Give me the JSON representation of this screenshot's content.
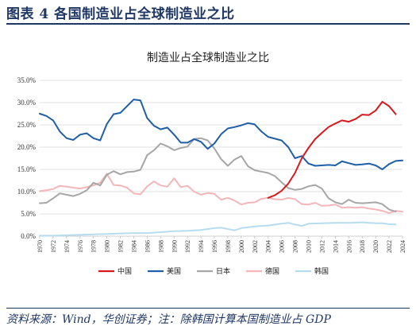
{
  "header": {
    "title": "图表 4   各国制造业占全球制造业之比"
  },
  "footer": {
    "source": "资料来源：Wind，华创证券；注：除韩国计算本国制造业占 GDP"
  },
  "chart_data": {
    "type": "line",
    "title": "制造业占全球制造业之比",
    "xlabel": "",
    "ylabel": "",
    "ylim": [
      0,
      35
    ],
    "yticks": [
      "0.0%",
      "5.0%",
      "10.0%",
      "15.0%",
      "20.0%",
      "25.0%",
      "30.0%",
      "35.0%"
    ],
    "x_start": 1970,
    "x_end": 2024,
    "xticks": [
      "1970",
      "1972",
      "1974",
      "1976",
      "1978",
      "1980",
      "1982",
      "1984",
      "1986",
      "1988",
      "1990",
      "1992",
      "1994",
      "1996",
      "1998",
      "2000",
      "2002",
      "2004",
      "2006",
      "2008",
      "2010",
      "2012",
      "2014",
      "2016",
      "2018",
      "2020",
      "2022",
      "2024"
    ],
    "grid": true,
    "legend_position": "bottom",
    "series": [
      {
        "name": "中国",
        "color": "#d7191c",
        "x": [
          2004,
          2005,
          2006,
          2007,
          2008,
          2009,
          2010,
          2011,
          2012,
          2013,
          2014,
          2015,
          2016,
          2017,
          2018,
          2019,
          2020,
          2021,
          2022,
          2023
        ],
        "values": [
          8.6,
          9.2,
          10.2,
          11.8,
          14.2,
          17.5,
          19.8,
          21.8,
          23.2,
          24.5,
          25.3,
          26.0,
          25.7,
          26.3,
          27.3,
          27.2,
          28.2,
          30.2,
          29.2,
          27.4
        ]
      },
      {
        "name": "美国",
        "color": "#1f5fa8",
        "x": [
          1970,
          1971,
          1972,
          1973,
          1974,
          1975,
          1976,
          1977,
          1978,
          1979,
          1980,
          1981,
          1982,
          1983,
          1984,
          1985,
          1986,
          1987,
          1988,
          1989,
          1990,
          1991,
          1992,
          1993,
          1994,
          1995,
          1996,
          1997,
          1998,
          1999,
          2000,
          2001,
          2002,
          2003,
          2004,
          2005,
          2006,
          2007,
          2008,
          2009,
          2010,
          2011,
          2012,
          2013,
          2014,
          2015,
          2016,
          2017,
          2018,
          2019,
          2020,
          2021,
          2022,
          2023,
          2024
        ],
        "values": [
          27.5,
          27.0,
          26.0,
          23.5,
          22.0,
          21.6,
          22.8,
          23.1,
          22.0,
          21.5,
          25.2,
          27.4,
          27.7,
          29.2,
          30.7,
          30.5,
          26.5,
          24.8,
          24.0,
          24.4,
          22.8,
          21.0,
          21.0,
          21.8,
          21.2,
          19.6,
          20.8,
          22.9,
          24.2,
          24.5,
          24.9,
          25.4,
          25.1,
          23.5,
          22.3,
          21.9,
          21.5,
          20.0,
          17.5,
          18.0,
          16.3,
          15.8,
          15.9,
          16.0,
          15.9,
          16.8,
          16.4,
          16.0,
          16.1,
          16.3,
          15.9,
          15.0,
          16.2,
          16.9,
          17.0
        ]
      },
      {
        "name": "日本",
        "color": "#a6a6a6",
        "x": [
          1970,
          1971,
          1972,
          1973,
          1974,
          1975,
          1976,
          1977,
          1978,
          1979,
          1980,
          1981,
          1982,
          1983,
          1984,
          1985,
          1986,
          1987,
          1988,
          1989,
          1990,
          1991,
          1992,
          1993,
          1994,
          1995,
          1996,
          1997,
          1998,
          1999,
          2000,
          2001,
          2002,
          2003,
          2004,
          2005,
          2006,
          2007,
          2008,
          2009,
          2010,
          2011,
          2012,
          2013,
          2014,
          2015,
          2016,
          2017,
          2018,
          2019,
          2020,
          2021,
          2022,
          2023
        ],
        "values": [
          7.4,
          7.5,
          8.5,
          9.6,
          9.3,
          9.0,
          9.5,
          10.3,
          12.0,
          11.4,
          13.8,
          14.6,
          13.9,
          14.4,
          14.5,
          14.9,
          18.2,
          19.3,
          20.8,
          20.2,
          19.3,
          19.8,
          20.1,
          21.8,
          22.0,
          21.5,
          19.7,
          17.3,
          15.8,
          17.2,
          18.0,
          15.7,
          14.8,
          14.5,
          14.2,
          13.5,
          12.1,
          10.8,
          10.4,
          10.6,
          11.2,
          11.5,
          10.7,
          8.5,
          7.6,
          7.2,
          8.2,
          7.5,
          7.4,
          7.5,
          7.6,
          7.2,
          6.0,
          5.5
        ]
      },
      {
        "name": "德国",
        "color": "#f4b6b9",
        "x": [
          1970,
          1971,
          1972,
          1973,
          1974,
          1975,
          1976,
          1977,
          1978,
          1979,
          1980,
          1981,
          1982,
          1983,
          1984,
          1985,
          1986,
          1987,
          1988,
          1989,
          1990,
          1991,
          1992,
          1993,
          1994,
          1995,
          1996,
          1997,
          1998,
          1999,
          2000,
          2001,
          2002,
          2003,
          2004,
          2005,
          2006,
          2007,
          2008,
          2009,
          2010,
          2011,
          2012,
          2013,
          2014,
          2015,
          2016,
          2017,
          2018,
          2019,
          2020,
          2021,
          2022,
          2023,
          2024
        ],
        "values": [
          10.1,
          10.3,
          10.6,
          11.3,
          11.1,
          10.9,
          10.7,
          11.0,
          11.4,
          12.0,
          14.0,
          11.5,
          11.4,
          10.9,
          9.6,
          9.4,
          11.2,
          12.3,
          11.4,
          11.1,
          13.0,
          11.0,
          11.3,
          10.0,
          9.3,
          9.7,
          9.5,
          8.2,
          8.6,
          8.0,
          7.1,
          7.5,
          7.6,
          8.4,
          8.6,
          8.3,
          8.2,
          8.6,
          8.3,
          7.2,
          7.1,
          7.5,
          6.8,
          6.9,
          7.1,
          6.4,
          6.5,
          6.4,
          6.5,
          6.2,
          6.0,
          5.7,
          5.2,
          5.7,
          5.5
        ]
      },
      {
        "name": "韩国",
        "color": "#b8dcef",
        "x": [
          1970,
          1972,
          1974,
          1976,
          1978,
          1980,
          1982,
          1984,
          1986,
          1988,
          1990,
          1992,
          1994,
          1996,
          1997,
          1998,
          1999,
          2000,
          2002,
          2004,
          2006,
          2007,
          2008,
          2009,
          2010,
          2012,
          2014,
          2016,
          2018,
          2020,
          2021,
          2022,
          2023
        ],
        "values": [
          0.1,
          0.1,
          0.2,
          0.3,
          0.4,
          0.5,
          0.6,
          0.7,
          0.7,
          0.9,
          1.1,
          1.2,
          1.4,
          1.8,
          1.9,
          1.6,
          1.3,
          1.8,
          2.2,
          2.4,
          2.8,
          3.0,
          2.6,
          2.3,
          2.8,
          2.9,
          3.0,
          3.0,
          3.1,
          2.9,
          2.9,
          2.7,
          2.6
        ]
      }
    ]
  }
}
